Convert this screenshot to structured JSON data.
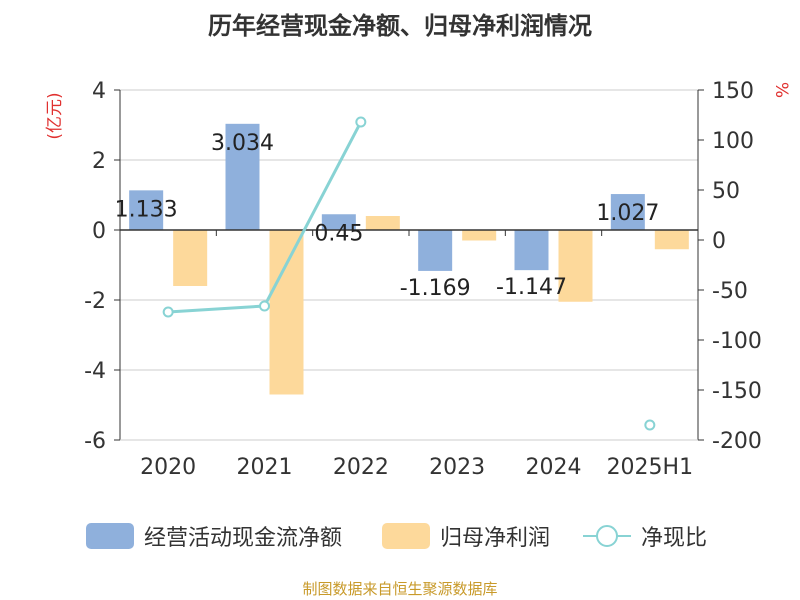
{
  "chart_data": {
    "type": "bar+line",
    "title": "历年经营现金净额、归母净利润情况",
    "categories": [
      "2020",
      "2021",
      "2022",
      "2023",
      "2024",
      "2025H1"
    ],
    "y_left": {
      "label": "(亿元)",
      "range": [
        -6,
        4
      ],
      "ticks": [
        "4",
        "2",
        "0",
        "-2",
        "-4",
        "-6"
      ]
    },
    "y_right": {
      "label": "%",
      "range": [
        -200,
        150
      ],
      "ticks": [
        "150",
        "100",
        "50",
        "0",
        "-50",
        "-100",
        "-150",
        "-200"
      ]
    },
    "series": [
      {
        "name": "经营活动现金流净额",
        "type": "bar",
        "axis": "left",
        "color": "#8fb0dc",
        "values": [
          1.133,
          3.034,
          0.45,
          -1.169,
          -1.147,
          1.027
        ],
        "labels": [
          "1.133",
          "3.034",
          "0.45",
          "-1.169",
          "-1.147",
          "1.027"
        ]
      },
      {
        "name": "归母净利润",
        "type": "bar",
        "axis": "left",
        "color": "#fdd99b",
        "values": [
          -1.6,
          -4.7,
          0.4,
          -0.3,
          -2.05,
          -0.55
        ]
      },
      {
        "name": "净现比",
        "type": "line",
        "axis": "right",
        "color": "#88d3d4",
        "values": [
          -72,
          -66,
          118,
          null,
          null,
          -185
        ]
      }
    ],
    "legend_position": "bottom",
    "grid": true
  },
  "footer": "制图数据来自恒生聚源数据库"
}
